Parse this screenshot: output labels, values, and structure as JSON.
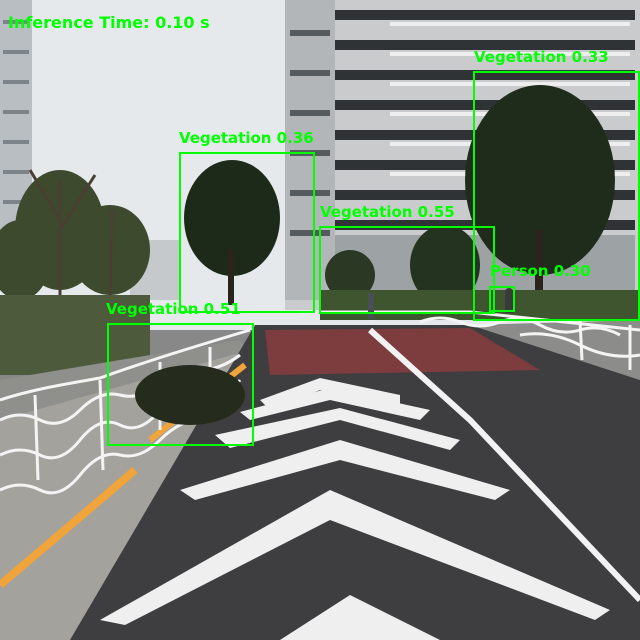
{
  "overlay": {
    "inference_label": "Inference Time: 0.10 s",
    "color": "#00ff00"
  },
  "detections": [
    {
      "label": "Vegetation 0.36"
    },
    {
      "label": "Vegetation 0.55"
    },
    {
      "label": "Vegetation 0.33"
    },
    {
      "label": "Person 0.30"
    },
    {
      "label": "Vegetation 0.51"
    }
  ]
}
